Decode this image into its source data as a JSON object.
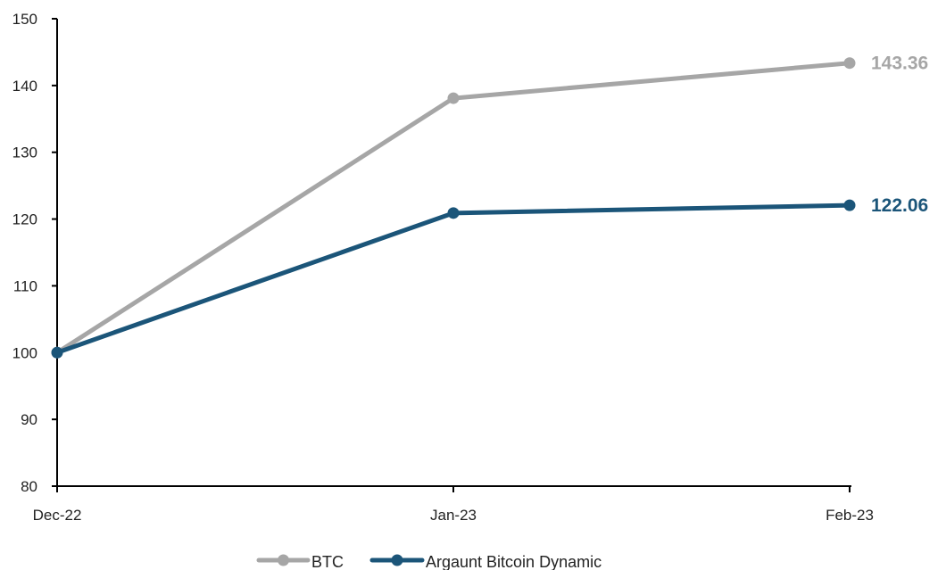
{
  "chart_data": {
    "type": "line",
    "categories": [
      "Dec-22",
      "Jan-23",
      "Feb-23"
    ],
    "ylim": [
      80,
      150
    ],
    "yticks": [
      80,
      90,
      100,
      110,
      120,
      130,
      140,
      150
    ],
    "grid": false,
    "legend_position": "bottom-center",
    "series": [
      {
        "name": "BTC",
        "color": "#A6A6A6",
        "values": [
          100,
          138.1,
          143.36
        ],
        "end_label": "143.36"
      },
      {
        "name": "Argaunt Bitcoin Dynamic",
        "color": "#1B5579",
        "values": [
          100,
          120.9,
          122.06
        ],
        "end_label": "122.06"
      }
    ]
  }
}
